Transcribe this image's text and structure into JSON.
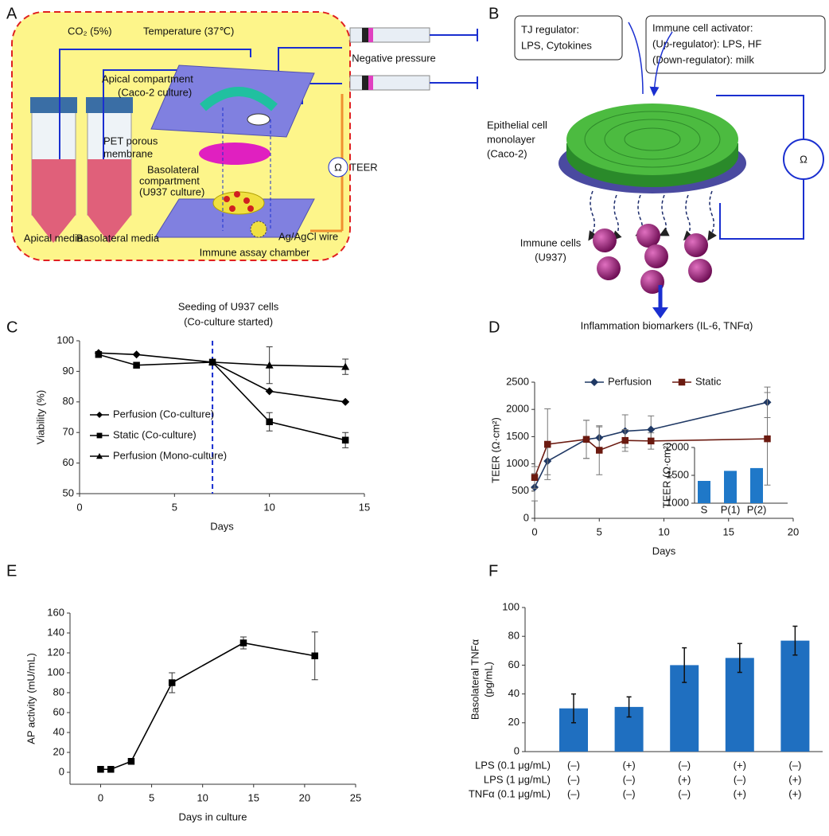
{
  "panel_labels": [
    "A",
    "B",
    "C",
    "D",
    "E",
    "F"
  ],
  "diagram_a": {
    "co2": "CO₂ (5%)",
    "temperature": "Temperature (37℃)",
    "negative_pressure": "Negative pressure",
    "apical_compartment": [
      "Apical compartment",
      "(Caco-2 culture)"
    ],
    "membrane": [
      "PET porous",
      "membrane"
    ],
    "basolateral_compartment": [
      "Basolateral",
      "compartment",
      "(U937 culture)"
    ],
    "omega": "Ω",
    "teer": "TEER",
    "apical_media": "Apical media",
    "basolateral_media": "Basolateral media",
    "wire": "Ag/AgCl wire",
    "assay_chamber": "Immune assay chamber"
  },
  "diagram_b": {
    "tj_box": [
      "TJ regulator:",
      "LPS, Cytokines"
    ],
    "immune_box": [
      "Immune cell activator:",
      "(Up-regulator): LPS, HF",
      "(Down-regulator): milk"
    ],
    "epithelial": [
      "Epithelial cell",
      "monolayer",
      "(Caco-2)"
    ],
    "omega": "Ω",
    "immune_cells": [
      "Immune cells",
      "(U937)"
    ],
    "biomarkers": "Inflammation biomarkers (IL-6, TNFα)"
  },
  "chart_data": [
    {
      "type": "line",
      "title": [
        "Seeding of U937 cells",
        "(Co-culture started)"
      ],
      "x_label": "Days",
      "y_label": "Viability (%)",
      "xlim": [
        0,
        15
      ],
      "xticks": [
        0,
        5,
        10,
        15
      ],
      "ylim": [
        50,
        100
      ],
      "yticks": [
        50,
        60,
        70,
        80,
        90,
        100
      ],
      "vline": 7,
      "vline_color": "#1a2fd0",
      "legend": "left",
      "series": [
        {
          "name": "Perfusion (Co-culture)",
          "color": "#000000",
          "marker": "diamond",
          "x": [
            1,
            3,
            7,
            10,
            14
          ],
          "values": [
            96,
            95.5,
            93,
            83.5,
            80
          ],
          "errors": [
            null,
            null,
            null,
            null,
            null
          ]
        },
        {
          "name": "Static (Co-culture)",
          "color": "#000000",
          "marker": "square",
          "x": [
            1,
            3,
            7,
            10,
            14
          ],
          "values": [
            95.5,
            92,
            93,
            73.5,
            67.5
          ],
          "errors": [
            null,
            null,
            null,
            3,
            2.5
          ]
        },
        {
          "name": "Perfusion (Mono-culture)",
          "color": "#000000",
          "marker": "triangle",
          "x": [
            7,
            10,
            14
          ],
          "values": [
            93,
            92,
            91.5
          ],
          "errors": [
            null,
            6,
            2.5
          ]
        }
      ]
    },
    {
      "type": "line",
      "x_label": "Days",
      "y_label": "TEER (Ω·cm²)",
      "xlim": [
        0,
        20
      ],
      "xticks": [
        0,
        5,
        10,
        15,
        20
      ],
      "ylim": [
        0,
        2500
      ],
      "yticks": [
        0,
        500,
        1000,
        1500,
        2000,
        2500
      ],
      "legend": "top",
      "series": [
        {
          "name": "Perfusion",
          "color": "#1f3864",
          "marker": "diamond",
          "x": [
            0,
            1,
            4,
            5,
            7,
            9,
            18
          ],
          "values": [
            570,
            1050,
            1450,
            1480,
            1600,
            1630,
            2130
          ],
          "errors": [
            250,
            250,
            350,
            200,
            300,
            250,
            280
          ]
        },
        {
          "name": "Static",
          "color": "#6b1a10",
          "marker": "square",
          "x": [
            0,
            1,
            4,
            5,
            7,
            9,
            18
          ],
          "values": [
            750,
            1360,
            1450,
            1250,
            1430,
            1420,
            1460
          ],
          "errors": [
            200,
            650,
            350,
            450,
            200,
            150,
            850
          ]
        }
      ]
    },
    {
      "type": "bar",
      "y_label": "TEER (Ω·cm²)",
      "categories": [
        "S",
        "P(1)",
        "P(2)"
      ],
      "values": [
        1400,
        1580,
        1630
      ],
      "color": "#1f78c8",
      "ylim": [
        1000,
        2000
      ],
      "yticks": [
        1000,
        1500,
        2000
      ]
    },
    {
      "type": "line",
      "x_label": "Days in culture",
      "y_label": "AP activity (mU/mL)",
      "xlim": [
        -3,
        25
      ],
      "xticks": [
        0,
        5,
        10,
        15,
        20,
        25
      ],
      "ylim": [
        -12,
        160
      ],
      "yticks": [
        0,
        20,
        40,
        60,
        80,
        100,
        120,
        140,
        160
      ],
      "series": [
        {
          "color": "#000000",
          "marker": "square",
          "x": [
            0,
            1,
            3,
            7,
            14,
            21
          ],
          "values": [
            3,
            3,
            11,
            90,
            130,
            117
          ],
          "errors": [
            2,
            1,
            1,
            10,
            6,
            24
          ]
        }
      ]
    },
    {
      "type": "bar",
      "y_label": [
        "Basolateral TNFα",
        "(pg/mL)"
      ],
      "values": [
        30,
        31,
        60,
        65,
        77
      ],
      "errors": [
        10,
        7,
        12,
        10,
        10
      ],
      "color": "#1f6fc0",
      "ylim": [
        0,
        100
      ],
      "yticks": [
        0,
        20,
        40,
        60,
        80,
        100
      ],
      "conditions": [
        {
          "label": "LPS (0.1 μg/mL)",
          "values": [
            "(–)",
            "(+)",
            "(–)",
            "(+)",
            "(–)"
          ]
        },
        {
          "label": "LPS (1 μg/mL)",
          "values": [
            "(–)",
            "(–)",
            "(+)",
            "(–)",
            "(+)"
          ]
        },
        {
          "label": "TNFα (0.1 μg/mL)",
          "values": [
            "(–)",
            "(–)",
            "(–)",
            "(+)",
            "(+)"
          ]
        }
      ]
    }
  ]
}
